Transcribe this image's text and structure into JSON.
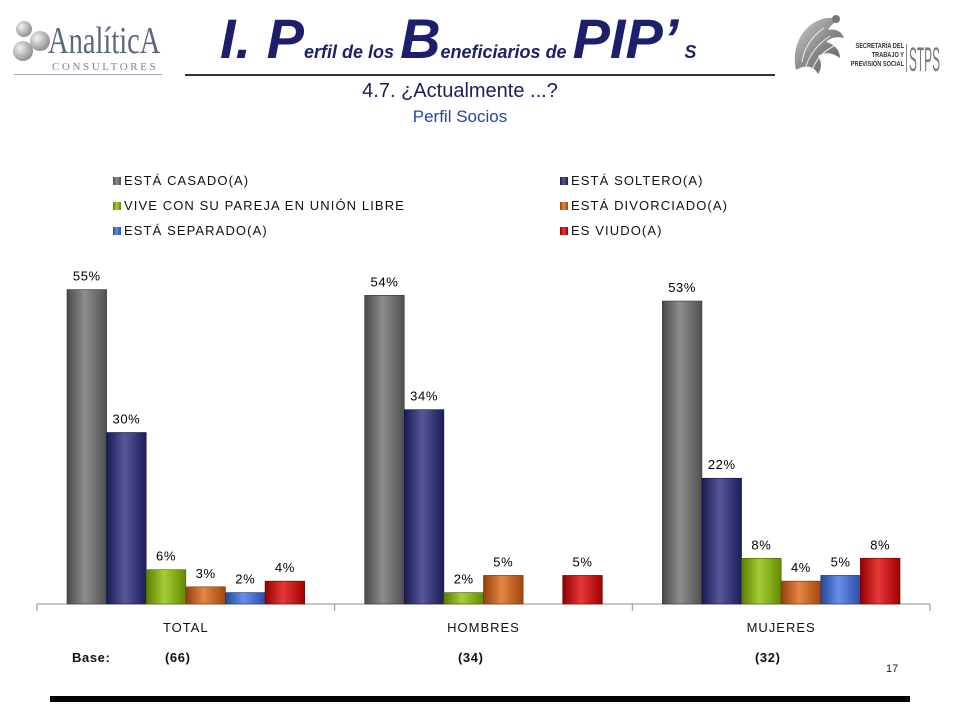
{
  "logo_left": {
    "name": "AnalíticA",
    "tagline": "CONSULTORES"
  },
  "logo_right": {
    "line1": "SECRETARÍA DEL",
    "line2": "TRABAJO Y",
    "line3": "PREVISIÓN SOCIAL",
    "acronym": "STPS"
  },
  "title": {
    "p1": "I. P",
    "p2": "erfil de los",
    "p3": "B",
    "p4": "eneficiarios de",
    "p5": "PIP’",
    "p6": "S"
  },
  "subtitle": "4.7. ¿Actualmente ...?",
  "segment": "Perfil Socios",
  "colors": {
    "title": "#1d1f6b",
    "segment": "#2244a6"
  },
  "chart_data": {
    "type": "bar",
    "categories": [
      "TOTAL",
      "HOMBRES",
      "MUJERES"
    ],
    "unit": "%",
    "ylim": [
      0,
      60
    ],
    "grid": false,
    "legend_position": "top",
    "series": [
      {
        "name": "ESTÁ CASADO(A)",
        "color": "#6e6e6e",
        "values": [
          55,
          54,
          53
        ]
      },
      {
        "name": "ESTÁ SOLTERO(A)",
        "color": "#28287f",
        "values": [
          30,
          34,
          22
        ]
      },
      {
        "name": "VIVE CON SU PAREJA EN UNIÓN LIBRE",
        "color": "#8cbf00",
        "values": [
          6,
          2,
          8
        ]
      },
      {
        "name": "ESTÁ DIVORCIADO(A)",
        "color": "#e0620f",
        "values": [
          3,
          5,
          4
        ]
      },
      {
        "name": "ESTÁ SEPARADO(A)",
        "color": "#3a6ee6",
        "values": [
          2,
          null,
          5
        ]
      },
      {
        "name": "ES VIUDO(A)",
        "color": "#e00000",
        "values": [
          4,
          5,
          8
        ]
      }
    ]
  },
  "base": {
    "label": "Base:",
    "values": [
      "(66)",
      "(34)",
      "(32)"
    ]
  },
  "page_number": "17"
}
